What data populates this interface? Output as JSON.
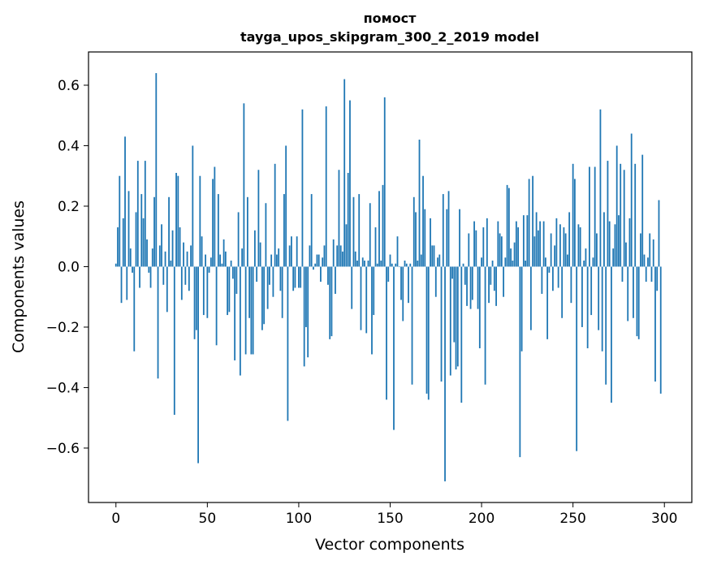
{
  "chart_data": {
    "type": "bar",
    "title_line1": "помост",
    "title_line2": "tayga_upos_skipgram_300_2_2019 model",
    "xlabel": "Vector components",
    "ylabel": "Components values",
    "xlim": [
      -15,
      315
    ],
    "ylim": [
      -0.78,
      0.71
    ],
    "xticks": [
      0,
      50,
      100,
      150,
      200,
      250,
      300
    ],
    "xtick_labels": [
      "0",
      "50",
      "100",
      "150",
      "200",
      "250",
      "300"
    ],
    "yticks": [
      -0.6,
      -0.4,
      -0.2,
      0.0,
      0.2,
      0.4,
      0.6
    ],
    "ytick_labels": [
      "−0.6",
      "−0.4",
      "−0.2",
      "0.0",
      "0.2",
      "0.4",
      "0.6"
    ],
    "bar_color": "#1f77b4",
    "values": [
      0.01,
      0.13,
      0.3,
      -0.12,
      0.16,
      0.43,
      -0.11,
      0.25,
      0.06,
      -0.02,
      -0.28,
      0.18,
      0.35,
      -0.07,
      0.24,
      0.16,
      0.35,
      0.09,
      -0.02,
      -0.07,
      0.06,
      0.23,
      0.64,
      -0.37,
      0.07,
      0.14,
      -0.06,
      0.05,
      -0.15,
      0.23,
      0.02,
      0.12,
      -0.49,
      0.31,
      0.3,
      0.13,
      -0.11,
      0.08,
      -0.06,
      0.05,
      -0.08,
      0.07,
      0.4,
      -0.24,
      -0.21,
      -0.65,
      0.3,
      0.1,
      -0.16,
      0.04,
      -0.17,
      -0.02,
      0.03,
      0.29,
      0.33,
      -0.26,
      0.24,
      0.04,
      0.01,
      0.09,
      0.05,
      -0.16,
      -0.15,
      0.02,
      -0.04,
      -0.31,
      -0.09,
      0.18,
      -0.36,
      0.06,
      0.54,
      -0.29,
      0.23,
      -0.17,
      -0.29,
      -0.29,
      0.12,
      -0.05,
      0.32,
      0.08,
      -0.21,
      -0.19,
      0.21,
      -0.14,
      -0.06,
      0.04,
      -0.1,
      0.34,
      0.04,
      0.06,
      -0.08,
      -0.17,
      0.24,
      0.4,
      -0.51,
      0.07,
      0.1,
      -0.08,
      -0.07,
      0.1,
      -0.07,
      -0.07,
      0.52,
      -0.33,
      -0.2,
      -0.3,
      0.07,
      0.24,
      -0.01,
      0.01,
      0.04,
      0.04,
      -0.05,
      0.03,
      0.07,
      0.53,
      -0.06,
      -0.24,
      -0.23,
      0.09,
      -0.09,
      0.07,
      0.32,
      0.07,
      0.05,
      0.62,
      0.14,
      0.31,
      0.55,
      -0.14,
      0.23,
      0.05,
      0.02,
      0.24,
      -0.21,
      0.03,
      0.02,
      -0.22,
      0.02,
      0.21,
      -0.29,
      -0.16,
      0.13,
      0.01,
      0.25,
      0.02,
      0.27,
      0.56,
      -0.44,
      -0.05,
      0.04,
      0.01,
      -0.54,
      0.01,
      0.1,
      0.0,
      -0.11,
      -0.18,
      0.02,
      0.01,
      -0.12,
      0.01,
      -0.39,
      0.23,
      0.18,
      0.02,
      0.42,
      0.04,
      0.3,
      0.19,
      -0.42,
      -0.44,
      0.16,
      0.07,
      0.07,
      -0.1,
      0.03,
      0.04,
      -0.38,
      0.24,
      -0.71,
      0.19,
      0.25,
      -0.36,
      -0.04,
      -0.25,
      -0.34,
      -0.33,
      0.19,
      -0.45,
      0.01,
      -0.06,
      -0.13,
      0.11,
      -0.14,
      -0.11,
      0.15,
      0.12,
      -0.14,
      -0.27,
      0.03,
      0.13,
      -0.39,
      0.16,
      -0.12,
      -0.06,
      0.02,
      -0.08,
      -0.13,
      0.15,
      0.11,
      0.1,
      -0.1,
      0.03,
      0.27,
      0.26,
      0.06,
      0.02,
      0.08,
      0.15,
      0.13,
      -0.63,
      -0.28,
      0.17,
      0.02,
      0.17,
      0.29,
      -0.21,
      0.3,
      0.1,
      0.18,
      0.12,
      0.15,
      -0.09,
      0.15,
      0.03,
      -0.24,
      -0.02,
      0.11,
      -0.08,
      0.07,
      0.16,
      -0.07,
      0.14,
      -0.17,
      0.13,
      0.11,
      0.04,
      0.18,
      -0.12,
      0.34,
      0.29,
      -0.61,
      0.14,
      0.13,
      -0.2,
      0.02,
      0.06,
      -0.27,
      0.33,
      -0.16,
      0.03,
      0.33,
      0.11,
      -0.21,
      0.52,
      -0.28,
      0.18,
      -0.39,
      0.35,
      0.15,
      -0.45,
      0.06,
      0.14,
      0.4,
      0.17,
      0.34,
      -0.05,
      0.32,
      0.08,
      -0.18,
      0.16,
      0.44,
      -0.17,
      0.34,
      -0.23,
      -0.24,
      0.11,
      0.37,
      0.04,
      -0.05,
      0.03,
      0.11,
      -0.05,
      0.09,
      -0.38,
      -0.08,
      0.22,
      -0.42
    ]
  }
}
